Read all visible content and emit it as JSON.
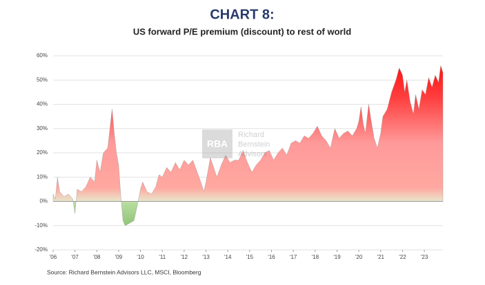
{
  "chart_data": {
    "type": "area",
    "title": "CHART 8:",
    "subtitle": "US forward P/E premium (discount) to rest of world",
    "source": "Source: Richard Bernstein Advisors LLC, MSCI, Bloomberg",
    "watermark": {
      "logo": "RBA",
      "lines": [
        "Richard",
        "Bernstein",
        "Advisors"
      ]
    },
    "xlim": [
      2006,
      2023.85
    ],
    "xticks": [
      {
        "value": 2006,
        "label": "'06"
      },
      {
        "value": 2007,
        "label": "'07"
      },
      {
        "value": 2008,
        "label": "'08"
      },
      {
        "value": 2009,
        "label": "'09"
      },
      {
        "value": 2010,
        "label": "'10"
      },
      {
        "value": 2011,
        "label": "'11"
      },
      {
        "value": 2012,
        "label": "'12"
      },
      {
        "value": 2013,
        "label": "'13"
      },
      {
        "value": 2014,
        "label": "'14"
      },
      {
        "value": 2015,
        "label": "'15"
      },
      {
        "value": 2016,
        "label": "'16"
      },
      {
        "value": 2017,
        "label": "'17"
      },
      {
        "value": 2018,
        "label": "'18"
      },
      {
        "value": 2019,
        "label": "'19"
      },
      {
        "value": 2020,
        "label": "'20"
      },
      {
        "value": 2021,
        "label": "'21"
      },
      {
        "value": 2022,
        "label": "'22"
      },
      {
        "value": 2023,
        "label": "'23"
      }
    ],
    "ylim": [
      -20,
      60
    ],
    "yticks": [
      {
        "value": -20,
        "label": "-20%"
      },
      {
        "value": -10,
        "label": "-10%"
      },
      {
        "value": 0,
        "label": "0%"
      },
      {
        "value": 10,
        "label": "10%"
      },
      {
        "value": 20,
        "label": "20%"
      },
      {
        "value": 30,
        "label": "30%"
      },
      {
        "value": 40,
        "label": "40%"
      },
      {
        "value": 50,
        "label": "50%"
      },
      {
        "value": 60,
        "label": "60%"
      }
    ],
    "grid": true,
    "series": [
      {
        "name": "US forward P/E premium",
        "color": "#ff9a9a",
        "x": [
          2006.0,
          2006.1,
          2006.2,
          2006.3,
          2006.5,
          2006.7,
          2006.9,
          2007.0,
          2007.1,
          2007.3,
          2007.5,
          2007.7,
          2007.9,
          2008.0,
          2008.15,
          2008.3,
          2008.5,
          2008.6,
          2008.7,
          2008.8,
          2008.9,
          2009.0,
          2009.1,
          2009.2,
          2009.3,
          2009.5,
          2009.7,
          2009.85,
          2010.0,
          2010.1,
          2010.3,
          2010.5,
          2010.7,
          2010.85,
          2011.0,
          2011.2,
          2011.4,
          2011.6,
          2011.8,
          2012.0,
          2012.2,
          2012.4,
          2012.6,
          2012.8,
          2012.9,
          2013.0,
          2013.2,
          2013.35,
          2013.5,
          2013.7,
          2013.9,
          2014.1,
          2014.3,
          2014.5,
          2014.7,
          2014.9,
          2015.1,
          2015.3,
          2015.5,
          2015.7,
          2015.9,
          2016.1,
          2016.3,
          2016.5,
          2016.7,
          2016.9,
          2017.1,
          2017.3,
          2017.5,
          2017.7,
          2017.9,
          2018.1,
          2018.3,
          2018.5,
          2018.7,
          2018.9,
          2019.1,
          2019.3,
          2019.5,
          2019.7,
          2019.9,
          2020.0,
          2020.1,
          2020.2,
          2020.3,
          2020.45,
          2020.55,
          2020.7,
          2020.85,
          2021.0,
          2021.1,
          2021.3,
          2021.5,
          2021.7,
          2021.85,
          2022.0,
          2022.1,
          2022.2,
          2022.35,
          2022.5,
          2022.6,
          2022.75,
          2022.9,
          2023.05,
          2023.2,
          2023.35,
          2023.5,
          2023.65,
          2023.75,
          2023.85
        ],
        "values": [
          3,
          1,
          10,
          4,
          2,
          3,
          1,
          -5,
          5,
          4,
          6,
          10,
          8,
          17,
          12,
          20,
          22,
          30,
          38,
          28,
          20,
          15,
          2,
          -8,
          -10,
          -9,
          -8,
          -2,
          5,
          8,
          4,
          3,
          6,
          11,
          10,
          14,
          12,
          16,
          13,
          17,
          15,
          17,
          12,
          7,
          4,
          8,
          18,
          14,
          10,
          15,
          19,
          16,
          17,
          17,
          21,
          16,
          12,
          15,
          17,
          20,
          21,
          17,
          20,
          22,
          19,
          24,
          25,
          24,
          27,
          26,
          28,
          31,
          27,
          25,
          22,
          30,
          26,
          28,
          29,
          27,
          30,
          33,
          39,
          32,
          28,
          40,
          34,
          26,
          22,
          28,
          35,
          38,
          45,
          50,
          55,
          52,
          45,
          50,
          41,
          36,
          44,
          38,
          46,
          44,
          51,
          47,
          52,
          49,
          56,
          53
        ]
      }
    ]
  }
}
